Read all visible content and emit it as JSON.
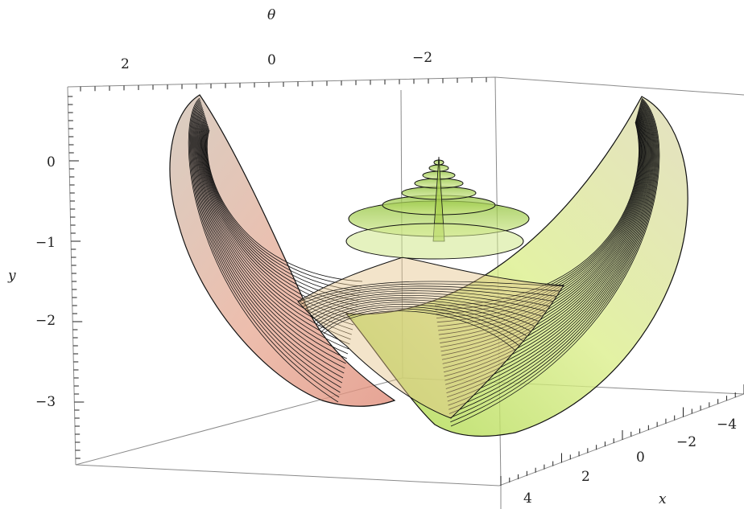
{
  "chart_data": {
    "type": "surface3d",
    "axes": {
      "theta": {
        "label": "θ",
        "ticks": [
          "2",
          "0",
          "−2"
        ]
      },
      "y": {
        "label": "y",
        "ticks": [
          "0",
          "−1",
          "−2",
          "−3"
        ]
      },
      "x": {
        "label": "x",
        "ticks": [
          "4",
          "2",
          "0",
          "−2",
          "−4"
        ]
      }
    },
    "grid": false,
    "box": true,
    "colors": {
      "left_wing": "#e7a892",
      "right_wing": "#cde86a",
      "center_spire": "#9cc83c",
      "mesh": "#111111",
      "box_edges": "#8a8a8a"
    }
  }
}
